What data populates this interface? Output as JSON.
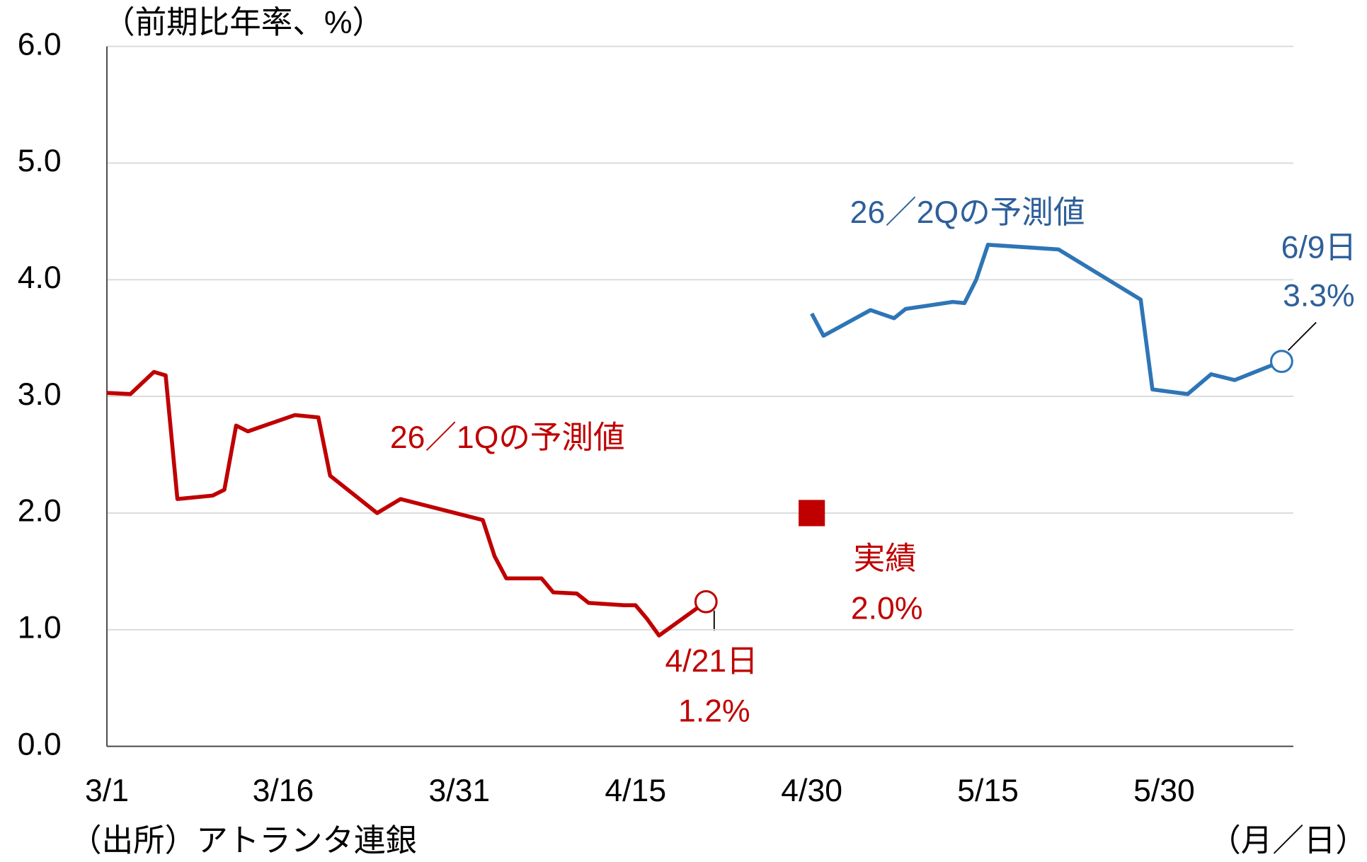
{
  "chart_data": {
    "type": "line",
    "y_label": "（前期比年率、%）",
    "x_label": "（月／日）",
    "source": "（出所）アトランタ連銀",
    "xlim": [
      "3/1",
      "6/10"
    ],
    "xticks": [
      "3/1",
      "3/16",
      "3/31",
      "4/15",
      "4/30",
      "5/15",
      "5/30"
    ],
    "ylim": [
      0,
      6
    ],
    "yticks": [
      {
        "value": 0,
        "label": "0.0"
      },
      {
        "value": 1,
        "label": "1.0"
      },
      {
        "value": 2,
        "label": "2.0"
      },
      {
        "value": 3,
        "label": "3.0"
      },
      {
        "value": 4,
        "label": "4.0"
      },
      {
        "value": 5,
        "label": "5.0"
      },
      {
        "value": 6,
        "label": "6.0"
      }
    ],
    "grid": true,
    "series": [
      {
        "name": "26／1Qの予測値",
        "color": "#c00000",
        "x": [
          "3/1",
          "3/3",
          "3/5",
          "3/6",
          "3/7",
          "3/10",
          "3/11",
          "3/12",
          "3/13",
          "3/17",
          "3/19",
          "3/20",
          "3/24",
          "3/26",
          "4/2",
          "4/3",
          "4/4",
          "4/7",
          "4/8",
          "4/10",
          "4/11",
          "4/14",
          "4/15",
          "4/16",
          "4/17",
          "4/21"
        ],
        "values": [
          3.03,
          3.02,
          3.21,
          3.18,
          2.12,
          2.15,
          2.2,
          2.75,
          2.7,
          2.84,
          2.82,
          2.32,
          2.0,
          2.12,
          1.94,
          1.63,
          1.44,
          1.44,
          1.32,
          1.31,
          1.23,
          1.21,
          1.21,
          1.09,
          0.95,
          1.24
        ],
        "end_label": [
          "4/21日",
          "1.2%"
        ]
      },
      {
        "name": "26／2Qの予測値",
        "color": "#2e75b6",
        "x": [
          "4/30",
          "5/1",
          "5/5",
          "5/7",
          "5/8",
          "5/12",
          "5/13",
          "5/14",
          "5/15",
          "5/21",
          "5/28",
          "5/29",
          "6/1",
          "6/3",
          "6/5",
          "6/9"
        ],
        "values": [
          3.71,
          3.52,
          3.74,
          3.67,
          3.75,
          3.81,
          3.8,
          4.0,
          4.3,
          4.26,
          3.83,
          3.06,
          3.02,
          3.19,
          3.14,
          3.3
        ],
        "end_label": [
          "6/9日",
          "3.3%"
        ]
      }
    ],
    "actual": {
      "name": "実績",
      "x": "4/30",
      "value": 2.0,
      "value_label": "2.0%",
      "color": "#c00000"
    }
  }
}
